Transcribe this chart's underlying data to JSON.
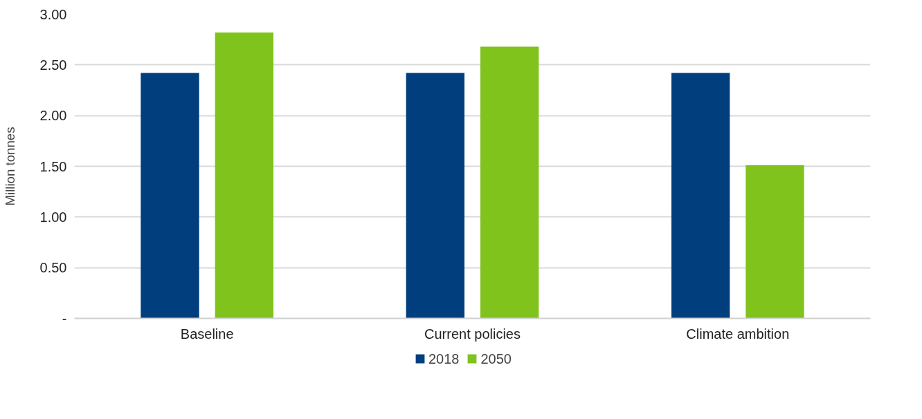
{
  "chart_data": {
    "type": "bar",
    "ylabel": "Million tonnes",
    "categories": [
      "Baseline",
      "Current policies",
      "Climate ambition"
    ],
    "series": [
      {
        "name": "2018",
        "color": "#003e7e",
        "values": [
          2.42,
          2.42,
          2.42
        ]
      },
      {
        "name": "2050",
        "color": "#7fc31c",
        "values": [
          2.82,
          2.68,
          1.51
        ]
      }
    ],
    "ylim": [
      0,
      3
    ],
    "yticks": [
      {
        "value": 0,
        "label": "-"
      },
      {
        "value": 0.5,
        "label": "0.50"
      },
      {
        "value": 1,
        "label": "1.00"
      },
      {
        "value": 1.5,
        "label": "1.50"
      },
      {
        "value": 2,
        "label": "2.00"
      },
      {
        "value": 2.5,
        "label": "2.50"
      },
      {
        "value": 3,
        "label": "3.00"
      }
    ],
    "grid": "y",
    "legend": "bottom"
  }
}
